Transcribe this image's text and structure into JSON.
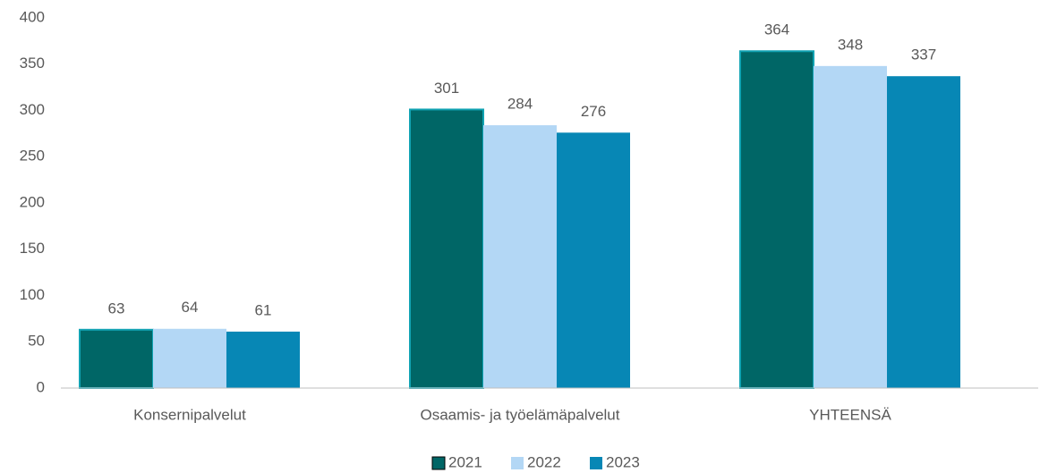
{
  "chart_data": {
    "type": "bar",
    "categories": [
      "Konsernipalvelut",
      "Osaamis- ja työelämäpalvelut",
      "YHTEENSÄ"
    ],
    "series": [
      {
        "name": "2021",
        "color": "#006666",
        "values": [
          63,
          301,
          364
        ]
      },
      {
        "name": "2022",
        "color": "#b3d7f5",
        "values": [
          64,
          284,
          348
        ]
      },
      {
        "name": "2023",
        "color": "#0787b5",
        "values": [
          61,
          276,
          337
        ]
      }
    ],
    "ylim": [
      0,
      400
    ],
    "yticks": [
      0,
      50,
      100,
      150,
      200,
      250,
      300,
      350,
      400
    ],
    "grid": false,
    "legend": "bottom"
  }
}
